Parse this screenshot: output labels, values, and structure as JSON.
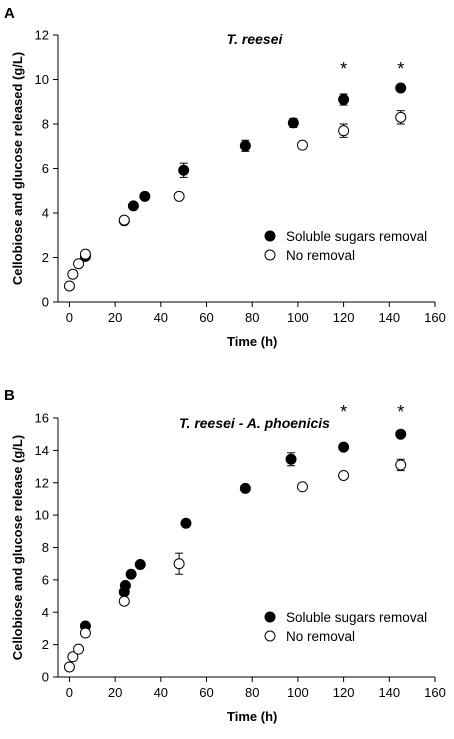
{
  "chart_data": [
    {
      "panel": "A",
      "type": "scatter",
      "title": "T. reesei",
      "xlabel": "Time (h)",
      "ylabel": "Cellobiose and glucose released (g/L)",
      "xlim": [
        -5,
        160
      ],
      "ylim": [
        0,
        12
      ],
      "xticks": [
        0,
        20,
        40,
        60,
        80,
        100,
        120,
        140,
        160
      ],
      "yticks": [
        0,
        2,
        4,
        6,
        8,
        10,
        12
      ],
      "legend_position": "right",
      "annotations": [
        {
          "text": "*",
          "x": 120
        },
        {
          "text": "*",
          "x": 145
        }
      ],
      "series": [
        {
          "name": "Soluble sugars removal",
          "marker": "filled-circle",
          "points": [
            {
              "x": 7,
              "y": 2.05
            },
            {
              "x": 24,
              "y": 3.65
            },
            {
              "x": 28,
              "y": 4.32
            },
            {
              "x": 33,
              "y": 4.75
            },
            {
              "x": 50,
              "y": 5.92,
              "err": 0.32
            },
            {
              "x": 77,
              "y": 7.02,
              "err": 0.25
            },
            {
              "x": 98,
              "y": 8.05,
              "err": 0.2
            },
            {
              "x": 120,
              "y": 9.1,
              "err": 0.25
            },
            {
              "x": 145,
              "y": 9.62
            }
          ]
        },
        {
          "name": "No removal",
          "marker": "open-circle",
          "points": [
            {
              "x": 0,
              "y": 0.72
            },
            {
              "x": 1.5,
              "y": 1.25
            },
            {
              "x": 4,
              "y": 1.72
            },
            {
              "x": 7,
              "y": 2.15
            },
            {
              "x": 24,
              "y": 3.68
            },
            {
              "x": 48,
              "y": 4.75
            },
            {
              "x": 102,
              "y": 7.05
            },
            {
              "x": 120,
              "y": 7.7,
              "err": 0.3
            },
            {
              "x": 145,
              "y": 8.3,
              "err": 0.3
            }
          ]
        }
      ]
    },
    {
      "panel": "B",
      "type": "scatter",
      "title": "T. reesei - A. phoenicis",
      "xlabel": "Time (h)",
      "ylabel": "Cellobiose and glucose release (g/L)",
      "xlim": [
        -5,
        160
      ],
      "ylim": [
        0,
        16
      ],
      "xticks": [
        0,
        20,
        40,
        60,
        80,
        100,
        120,
        140,
        160
      ],
      "yticks": [
        0,
        2,
        4,
        6,
        8,
        10,
        12,
        14,
        16
      ],
      "legend_position": "bottom-right",
      "annotations": [
        {
          "text": "*",
          "x": 120
        },
        {
          "text": "*",
          "x": 145
        }
      ],
      "series": [
        {
          "name": "Soluble sugars removal",
          "marker": "filled-circle",
          "points": [
            {
              "x": 7,
              "y": 3.15
            },
            {
              "x": 24,
              "y": 5.25
            },
            {
              "x": 24.5,
              "y": 5.65
            },
            {
              "x": 27,
              "y": 6.35
            },
            {
              "x": 31,
              "y": 6.95
            },
            {
              "x": 51,
              "y": 9.5
            },
            {
              "x": 77,
              "y": 11.65
            },
            {
              "x": 97,
              "y": 13.45,
              "err": 0.4
            },
            {
              "x": 120,
              "y": 14.2
            },
            {
              "x": 145,
              "y": 15.0
            }
          ]
        },
        {
          "name": "No removal",
          "marker": "open-circle",
          "points": [
            {
              "x": 0,
              "y": 0.62
            },
            {
              "x": 1.5,
              "y": 1.25
            },
            {
              "x": 4,
              "y": 1.72
            },
            {
              "x": 7,
              "y": 2.72
            },
            {
              "x": 24,
              "y": 4.68
            },
            {
              "x": 48,
              "y": 7.0,
              "err": 0.65
            },
            {
              "x": 102,
              "y": 11.75
            },
            {
              "x": 120,
              "y": 12.45
            },
            {
              "x": 145,
              "y": 13.1,
              "err": 0.35
            }
          ]
        }
      ]
    }
  ]
}
